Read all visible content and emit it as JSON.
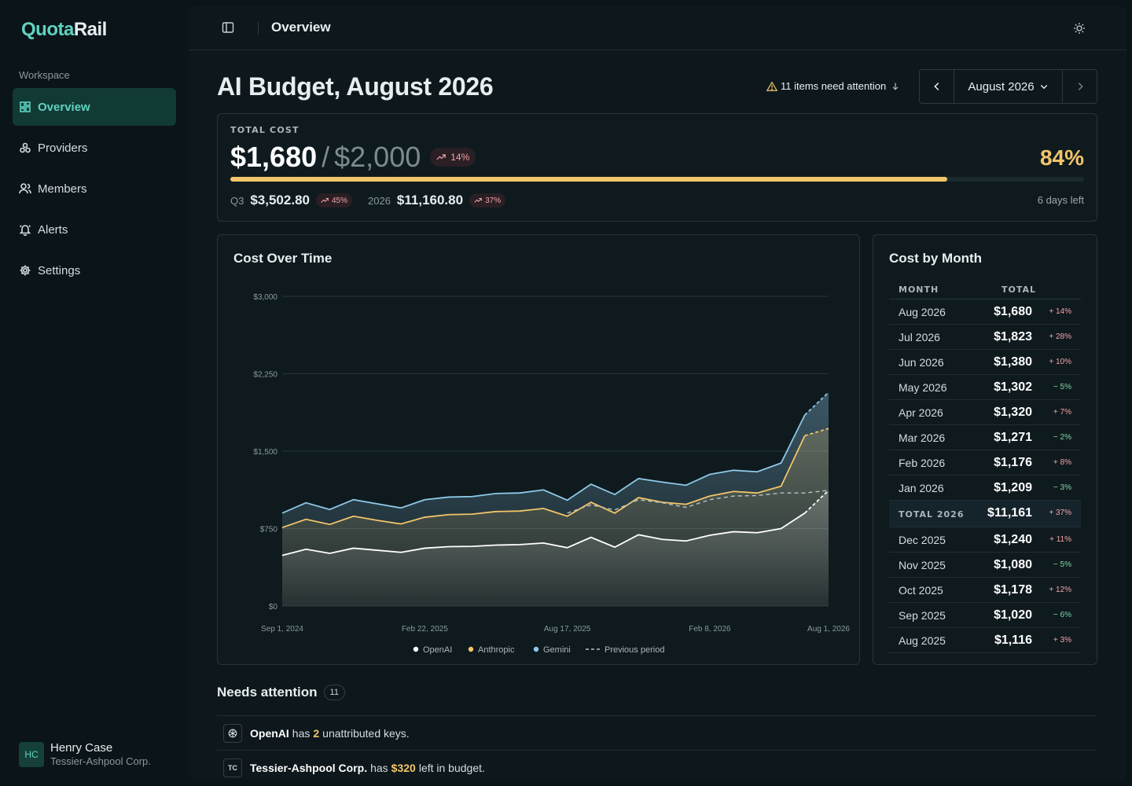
{
  "app": {
    "logo_a": "Quota",
    "logo_b": "Rail"
  },
  "sidebar": {
    "section": "Workspace",
    "items": [
      {
        "label": "Overview",
        "icon": "dashboard-icon",
        "active": true
      },
      {
        "label": "Providers",
        "icon": "providers-icon"
      },
      {
        "label": "Members",
        "icon": "members-icon"
      },
      {
        "label": "Alerts",
        "icon": "bell-icon"
      },
      {
        "label": "Settings",
        "icon": "gear-icon"
      }
    ],
    "user": {
      "initials": "HC",
      "name": "Henry Case",
      "org": "Tessier-Ashpool Corp."
    }
  },
  "topbar": {
    "title": "Overview"
  },
  "header": {
    "title": "AI Budget, August 2026",
    "attention": "11 items need attention",
    "month": "August 2026"
  },
  "total": {
    "label": "TOTAL COST",
    "cost": "$1,680",
    "slash": "/",
    "budget": "$2,000",
    "change": "14%",
    "percent": "84%",
    "progress": 0.84,
    "q3_label": "Q3",
    "q3_value": "$3,502.80",
    "q3_change": "45%",
    "year_label": "2026",
    "year_value": "$11,160.80",
    "year_change": "37%",
    "days_left": "6 days left"
  },
  "colors": {
    "openai": "#ffffff",
    "anthropic": "#f2c56a",
    "gemini": "#8ec9e8",
    "accent": "#5fd3c0"
  },
  "chart_data": {
    "type": "area",
    "title": "Cost Over Time",
    "y_ticks": [
      "$0",
      "$750",
      "$1,500",
      "$2,250",
      "$3,000"
    ],
    "ylim": [
      0,
      3000
    ],
    "x_tick_labels": [
      "Sep 1, 2024",
      "Feb 22, 2025",
      "Aug 17, 2025",
      "Feb 8, 2026",
      "Aug 1, 2026"
    ],
    "x_tick_index": [
      0,
      6,
      12,
      18,
      24
    ],
    "grid": true,
    "legend_position": "bottom",
    "series": [
      {
        "name": "OpenAI",
        "values": [
          490,
          550,
          510,
          560,
          540,
          520,
          560,
          575,
          578,
          590,
          595,
          610,
          565,
          665,
          570,
          690,
          645,
          630,
          685,
          720,
          710,
          750,
          900,
          1120
        ]
      },
      {
        "name": "Anthropic",
        "values": [
          760,
          840,
          790,
          870,
          830,
          795,
          860,
          885,
          890,
          915,
          920,
          945,
          870,
          1005,
          900,
          1050,
          1005,
          985,
          1065,
          1110,
          1095,
          1160,
          1650,
          1720
        ]
      },
      {
        "name": "Gemini",
        "values": [
          900,
          1000,
          935,
          1030,
          990,
          950,
          1030,
          1055,
          1060,
          1090,
          1095,
          1125,
          1025,
          1180,
          1080,
          1235,
          1200,
          1170,
          1275,
          1315,
          1300,
          1385,
          1850,
          2070
        ]
      },
      {
        "name": "Previous period",
        "values": [
          null,
          null,
          null,
          null,
          null,
          null,
          null,
          null,
          null,
          null,
          null,
          null,
          900,
          980,
          930,
          1030,
          1000,
          955,
          1030,
          1065,
          1070,
          1095,
          1095,
          1120
        ]
      }
    ]
  },
  "months": {
    "title": "Cost by Month",
    "col_month": "MONTH",
    "col_total": "TOTAL",
    "rows": [
      {
        "month": "Aug 2026",
        "total": "$1,680",
        "change": "+ 14%",
        "dir": "up"
      },
      {
        "month": "Jul 2026",
        "total": "$1,823",
        "change": "+ 28%",
        "dir": "up"
      },
      {
        "month": "Jun 2026",
        "total": "$1,380",
        "change": "+ 10%",
        "dir": "up"
      },
      {
        "month": "May 2026",
        "total": "$1,302",
        "change": "− 5%",
        "dir": "dn"
      },
      {
        "month": "Apr 2026",
        "total": "$1,320",
        "change": "+ 7%",
        "dir": "up"
      },
      {
        "month": "Mar 2026",
        "total": "$1,271",
        "change": "− 2%",
        "dir": "dn"
      },
      {
        "month": "Feb 2026",
        "total": "$1,176",
        "change": "+ 8%",
        "dir": "up"
      },
      {
        "month": "Jan 2026",
        "total": "$1,209",
        "change": "− 3%",
        "dir": "dn"
      },
      {
        "month": "TOTAL 2026",
        "total": "$11,161",
        "change": "+ 37%",
        "dir": "up",
        "total_row": true
      },
      {
        "month": "Dec 2025",
        "total": "$1,240",
        "change": "+ 11%",
        "dir": "up"
      },
      {
        "month": "Nov 2025",
        "total": "$1,080",
        "change": "− 5%",
        "dir": "dn"
      },
      {
        "month": "Oct 2025",
        "total": "$1,178",
        "change": "+ 12%",
        "dir": "up"
      },
      {
        "month": "Sep 2025",
        "total": "$1,020",
        "change": "− 6%",
        "dir": "dn"
      },
      {
        "month": "Aug 2025",
        "total": "$1,116",
        "change": "+ 3%",
        "dir": "up"
      }
    ]
  },
  "attention": {
    "title": "Needs attention",
    "count": "11",
    "items": [
      {
        "icon": "openai-icon",
        "entity": "OpenAI",
        "pre": "has",
        "value": "2",
        "post": "unattributed keys."
      },
      {
        "icon_text": "TC",
        "entity": "Tessier-Ashpool Corp.",
        "pre": "has",
        "value": "$320",
        "post": "left in budget."
      }
    ]
  }
}
